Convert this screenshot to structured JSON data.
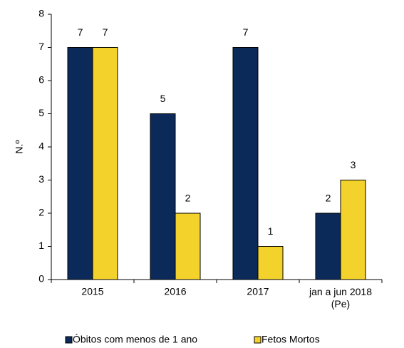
{
  "chart_data": {
    "type": "bar",
    "y_label": "N.º",
    "categories": [
      "2015",
      "2016",
      "2017",
      "jan a jun 2018\n(Pe)"
    ],
    "series": [
      {
        "name": "Óbitos com menos de 1 ano",
        "color": "#0b2a5a",
        "values": [
          7,
          5,
          7,
          2
        ]
      },
      {
        "name": "Fetos Mortos",
        "color": "#f4d22c",
        "values": [
          7,
          2,
          1,
          3
        ]
      }
    ],
    "ylim": [
      0,
      8
    ],
    "yticks": [
      0,
      1,
      2,
      3,
      4,
      5,
      6,
      7,
      8
    ],
    "grid": false,
    "legend": "bottom"
  }
}
